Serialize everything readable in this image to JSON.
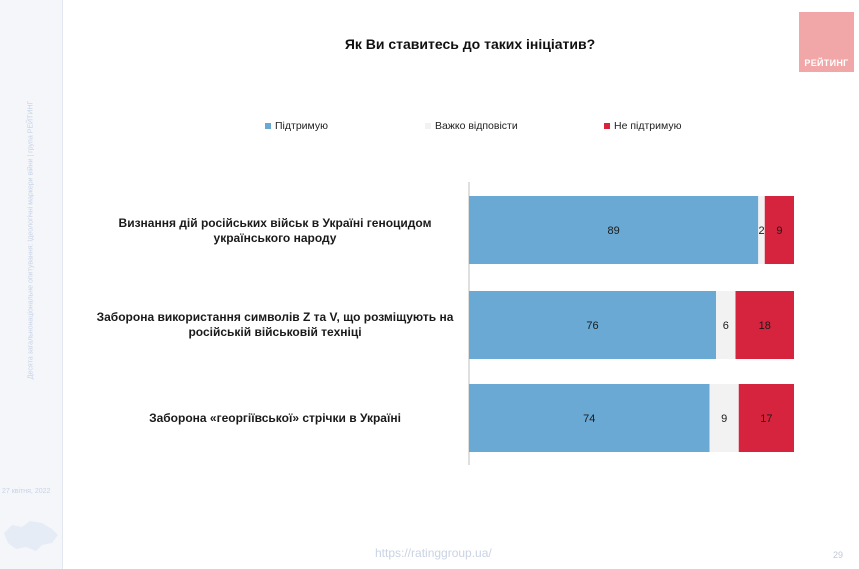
{
  "sidebar": {
    "caption": "Десята загальнонаціональне опитування: Ідеологічні маркери війни | група РЕЙТИНГ",
    "date": "27 квітня, 2022"
  },
  "logo": {
    "text": "РЕЙТИНГ",
    "color": "#f1a7a7"
  },
  "footer": {
    "url": "https://ratinggroup.ua/",
    "page": "29"
  },
  "chart_data": {
    "type": "bar",
    "orientation": "horizontal",
    "stacked": true,
    "title": "Як Ви ставитесь до таких ініціатив?",
    "categories": [
      "Визнання дій російських військ в Україні геноцидом українського народу",
      "Заборона використання символів Z та V, що розміщують на російській військовій техніці",
      "Заборона «георгіївської» стрічки в Україні"
    ],
    "series": [
      {
        "name": "Підтримую",
        "color": "#6aa9d4",
        "values": [
          89,
          76,
          74
        ]
      },
      {
        "name": "Важко відповісти",
        "color": "#f2f2f2",
        "values": [
          2,
          6,
          9
        ]
      },
      {
        "name": "Не підтримую",
        "color": "#d6243e",
        "values": [
          9,
          18,
          17
        ]
      }
    ],
    "xlim": [
      0,
      100
    ],
    "legend_position": "top",
    "data_labels": true,
    "grid": false
  }
}
